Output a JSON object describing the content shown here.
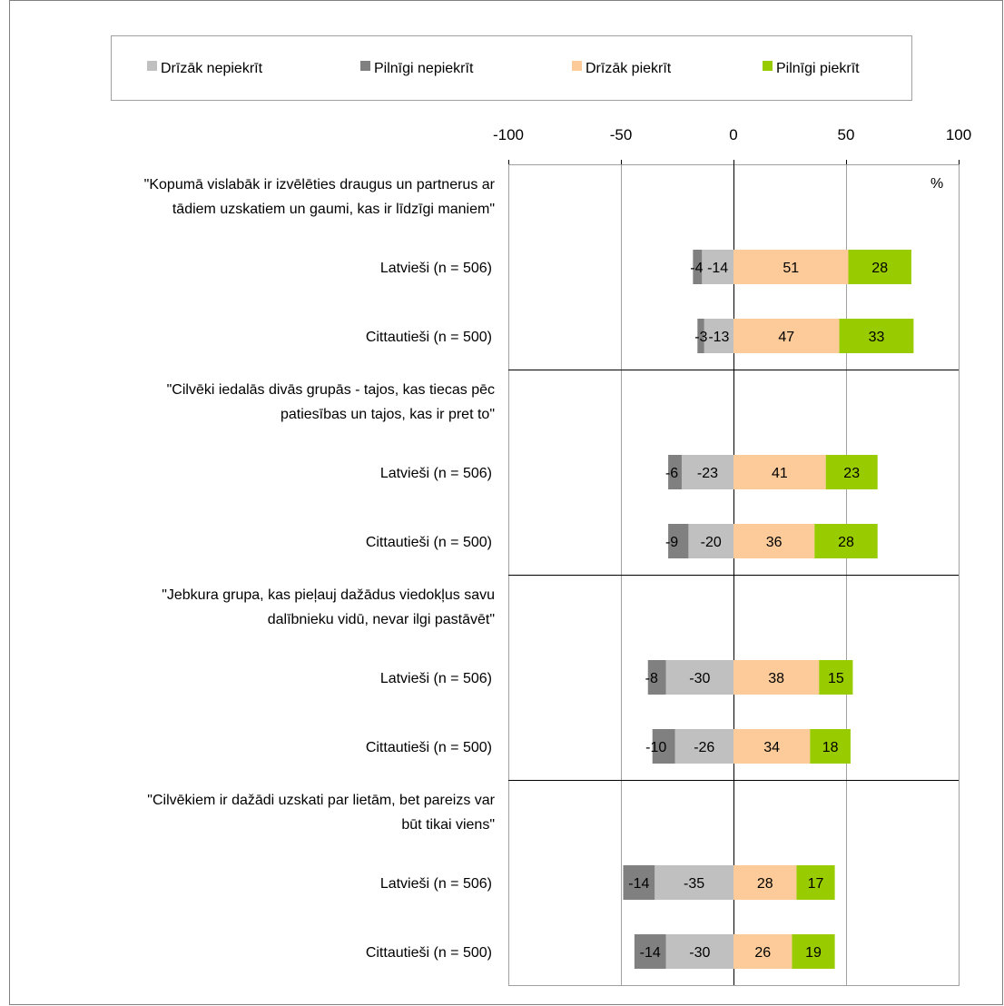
{
  "chart_data": {
    "type": "bar",
    "orientation": "horizontal",
    "stacked": "diverging",
    "unit_label": "%",
    "xlim": [
      -100,
      100
    ],
    "xticks": [
      -100,
      -50,
      0,
      50,
      100
    ],
    "grid": true,
    "legend_position": "top",
    "legend": [
      {
        "name": "Drīzāk nepiekrīt",
        "color": "#c0c0c0"
      },
      {
        "name": "Pilnīgi nepiekrīt",
        "color": "#808080"
      },
      {
        "name": "Drīzāk piekrīt",
        "color": "#fccb99"
      },
      {
        "name": "Pilnīgi piekrīt",
        "color": "#99cc00"
      }
    ],
    "groups": [
      {
        "statement_lines": [
          "\"Kopumā vislabāk ir izvēlēties draugus un partnerus ar",
          "tādiem uzskatiem un gaumi, kas ir līdzīgi maniem\""
        ],
        "rows": [
          {
            "label": "Latvieši (n = 506)",
            "drizak_nepiekrit": -14,
            "pilnigi_nepiekrit": -4,
            "drizak_piekrit": 51,
            "pilnigi_piekrit": 28
          },
          {
            "label": "Cittautieši (n = 500)",
            "drizak_nepiekrit": -13,
            "pilnigi_nepiekrit": -3,
            "drizak_piekrit": 47,
            "pilnigi_piekrit": 33
          }
        ]
      },
      {
        "statement_lines": [
          "\"Cilvēki iedalās divās grupās - tajos, kas tiecas pēc",
          "patiesības un tajos, kas ir pret to\""
        ],
        "rows": [
          {
            "label": "Latvieši (n = 506)",
            "drizak_nepiekrit": -23,
            "pilnigi_nepiekrit": -6,
            "drizak_piekrit": 41,
            "pilnigi_piekrit": 23
          },
          {
            "label": "Cittautieši (n = 500)",
            "drizak_nepiekrit": -20,
            "pilnigi_nepiekrit": -9,
            "drizak_piekrit": 36,
            "pilnigi_piekrit": 28
          }
        ]
      },
      {
        "statement_lines": [
          "\"Jebkura grupa, kas pieļauj dažādus viedokļus savu",
          "dalībnieku vidū, nevar ilgi pastāvēt\""
        ],
        "rows": [
          {
            "label": "Latvieši (n = 506)",
            "drizak_nepiekrit": -30,
            "pilnigi_nepiekrit": -8,
            "drizak_piekrit": 38,
            "pilnigi_piekrit": 15
          },
          {
            "label": "Cittautieši (n = 500)",
            "drizak_nepiekrit": -26,
            "pilnigi_nepiekrit": -10,
            "drizak_piekrit": 34,
            "pilnigi_piekrit": 18
          }
        ]
      },
      {
        "statement_lines": [
          "\"Cilvēkiem ir dažādi uzskati par lietām, bet pareizs var",
          "būt tikai viens\""
        ],
        "rows": [
          {
            "label": "Latvieši (n = 506)",
            "drizak_nepiekrit": -35,
            "pilnigi_nepiekrit": -14,
            "drizak_piekrit": 28,
            "pilnigi_piekrit": 17
          },
          {
            "label": "Cittautieši (n = 500)",
            "drizak_nepiekrit": -30,
            "pilnigi_nepiekrit": -14,
            "drizak_piekrit": 26,
            "pilnigi_piekrit": 19
          }
        ]
      }
    ]
  }
}
